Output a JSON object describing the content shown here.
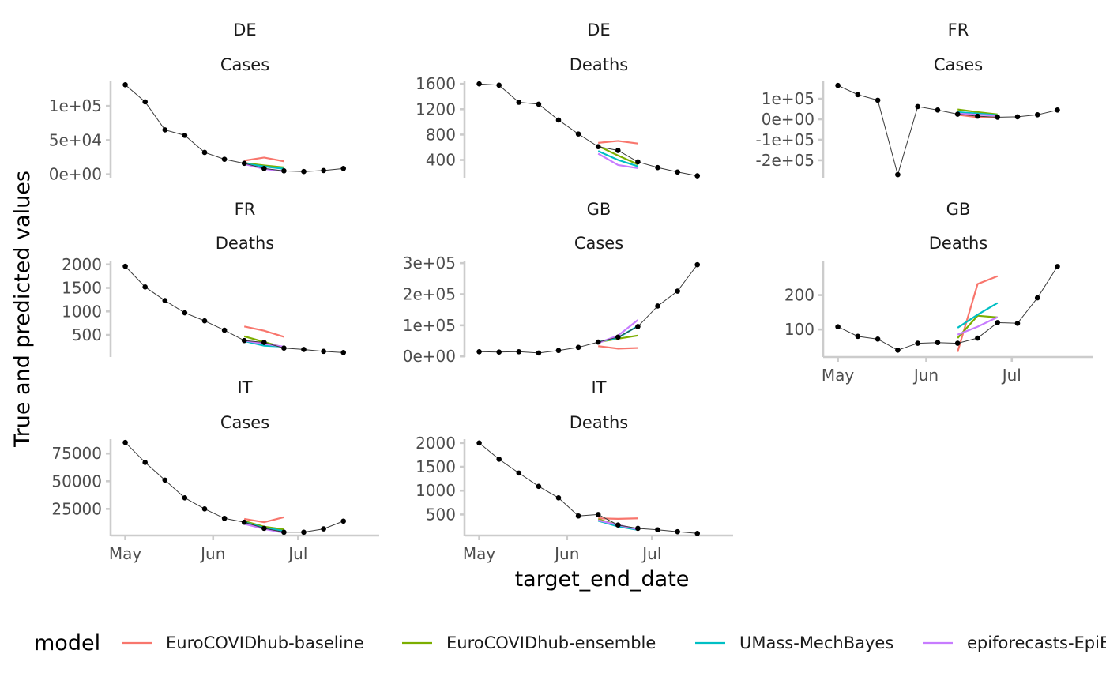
{
  "chart_data": {
    "type": "line",
    "xlabel": "target_end_date",
    "ylabel": "True and predicted values",
    "x_axis": {
      "ticks": [
        {
          "date": "2021-05-01",
          "label": "May"
        },
        {
          "date": "2021-06-01",
          "label": "Jun"
        },
        {
          "date": "2021-07-01",
          "label": "Jul"
        }
      ],
      "xlim": [
        "2021-04-30",
        "2021-07-26"
      ]
    },
    "true_dates": [
      "2021-05-01",
      "2021-05-08",
      "2021-05-15",
      "2021-05-22",
      "2021-05-29",
      "2021-06-05",
      "2021-06-12",
      "2021-06-19",
      "2021-06-26",
      "2021-07-03",
      "2021-07-10",
      "2021-07-17"
    ],
    "forecast_dates": [
      "2021-06-12",
      "2021-06-19",
      "2021-06-26"
    ],
    "legend": {
      "title": "model",
      "position": "bottom",
      "entries": [
        {
          "name": "EuroCOVIDhub-baseline",
          "color": "#F8766D"
        },
        {
          "name": "EuroCOVIDhub-ensemble",
          "color": "#7CAE00"
        },
        {
          "name": "UMass-MechBayes",
          "color": "#00BFC4"
        },
        {
          "name": "epiforecasts-EpiExpert",
          "color": "#C77CFF"
        }
      ]
    },
    "truth_color": "#000000",
    "panels": [
      {
        "location": "DE",
        "target": "Cases",
        "ylim": [
          -5000,
          136000
        ],
        "yticks": [
          {
            "v": 0,
            "label": "0e+00"
          },
          {
            "v": 50000,
            "label": "5e+04"
          },
          {
            "v": 100000,
            "label": "1e+05"
          }
        ],
        "truth": [
          131000,
          106000,
          65000,
          57000,
          32000,
          22000,
          16000,
          8500,
          5000,
          4000,
          5500,
          8500
        ],
        "forecasts": [
          [
            20000,
            24500,
            19000
          ],
          [
            16500,
            13000,
            10000
          ],
          [
            15500,
            11500,
            8000
          ],
          [
            15000,
            8000,
            4500
          ]
        ]
      },
      {
        "location": "DE",
        "target": "Deaths",
        "ylim": [
          120,
          1640
        ],
        "yticks": [
          {
            "v": 400,
            "label": "400"
          },
          {
            "v": 800,
            "label": "800"
          },
          {
            "v": 1200,
            "label": "1200"
          },
          {
            "v": 1600,
            "label": "1600"
          }
        ],
        "truth": [
          1600,
          1580,
          1310,
          1280,
          1030,
          810,
          610,
          550,
          370,
          280,
          210,
          150
        ],
        "forecasts": [
          [
            670,
            700,
            660
          ],
          [
            620,
            470,
            330
          ],
          [
            540,
            400,
            300
          ],
          [
            500,
            320,
            270
          ]
        ]
      },
      {
        "location": "FR",
        "target": "Cases",
        "ylim": [
          -285000,
          185000
        ],
        "yticks": [
          {
            "v": -200000,
            "label": "-2e+05"
          },
          {
            "v": -100000,
            "label": "-1e+05"
          },
          {
            "v": 0,
            "label": "0e+00"
          },
          {
            "v": 100000,
            "label": "1e+05"
          }
        ],
        "truth": [
          165000,
          120000,
          93000,
          -270000,
          62000,
          45000,
          25000,
          15000,
          10000,
          12000,
          22000,
          45000
        ],
        "forecasts": [
          [
            22000,
            10000,
            8000
          ],
          [
            48000,
            35000,
            24000
          ],
          [
            35000,
            28000,
            20000
          ],
          [
            28000,
            22000,
            18000
          ]
        ]
      },
      {
        "location": "FR",
        "target": "Deaths",
        "ylim": [
          30,
          2080
        ],
        "yticks": [
          {
            "v": 500,
            "label": "500"
          },
          {
            "v": 1000,
            "label": "1000"
          },
          {
            "v": 1500,
            "label": "1500"
          },
          {
            "v": 2000,
            "label": "2000"
          }
        ],
        "truth": [
          1960,
          1520,
          1230,
          970,
          800,
          600,
          380,
          340,
          220,
          190,
          150,
          125
        ],
        "forecasts": [
          [
            680,
            590,
            460
          ],
          [
            470,
            350,
            230
          ],
          [
            370,
            270,
            250
          ],
          [
            380,
            310,
            250
          ]
        ]
      },
      {
        "location": "GB",
        "target": "Cases",
        "ylim": [
          -2000,
          308000
        ],
        "yticks": [
          {
            "v": 0,
            "label": "0e+00"
          },
          {
            "v": 100000,
            "label": "1e+05"
          },
          {
            "v": 200000,
            "label": "2e+05"
          },
          {
            "v": 300000,
            "label": "3e+05"
          }
        ],
        "truth": [
          15000,
          14000,
          15000,
          11000,
          19000,
          29000,
          46000,
          62000,
          96000,
          162000,
          210000,
          295000
        ],
        "forecasts": [
          [
            33000,
            25000,
            27000
          ],
          [
            46000,
            57000,
            67000
          ],
          [
            46000,
            60000,
            98000
          ],
          [
            43000,
            67000,
            117000
          ]
        ]
      },
      {
        "location": "GB",
        "target": "Deaths",
        "ylim": [
          20,
          300
        ],
        "yticks": [
          {
            "v": 100,
            "label": "100"
          },
          {
            "v": 200,
            "label": "200"
          }
        ],
        "truth": [
          108,
          80,
          72,
          40,
          60,
          62,
          60,
          75,
          120,
          118,
          192,
          283
        ],
        "forecasts": [
          [
            35,
            232,
            255
          ],
          [
            75,
            140,
            135
          ],
          [
            105,
            143,
            177
          ],
          [
            85,
            108,
            136
          ]
        ]
      },
      {
        "location": "IT",
        "target": "Cases",
        "ylim": [
          1000,
          88000
        ],
        "yticks": [
          {
            "v": 25000,
            "label": "25000"
          },
          {
            "v": 50000,
            "label": "50000"
          },
          {
            "v": 75000,
            "label": "75000"
          }
        ],
        "truth": [
          85000,
          67000,
          51000,
          35000,
          25000,
          16500,
          13000,
          7500,
          4000,
          4000,
          7000,
          14000
        ],
        "forecasts": [
          [
            16000,
            13000,
            17500
          ],
          [
            14000,
            9000,
            6500
          ],
          [
            13000,
            8000,
            5000
          ],
          [
            11500,
            7000,
            3500
          ]
        ]
      },
      {
        "location": "IT",
        "target": "Deaths",
        "ylim": [
          60,
          2080
        ],
        "yticks": [
          {
            "v": 500,
            "label": "500"
          },
          {
            "v": 1000,
            "label": "1000"
          },
          {
            "v": 1500,
            "label": "1500"
          },
          {
            "v": 2000,
            "label": "2000"
          }
        ],
        "truth": [
          2000,
          1660,
          1370,
          1090,
          850,
          470,
          500,
          280,
          210,
          180,
          140,
          105
        ],
        "forecasts": [
          [
            420,
            410,
            420
          ],
          [
            400,
            280,
            190
          ],
          [
            370,
            250,
            180
          ],
          [
            380,
            280,
            190
          ]
        ]
      }
    ]
  }
}
